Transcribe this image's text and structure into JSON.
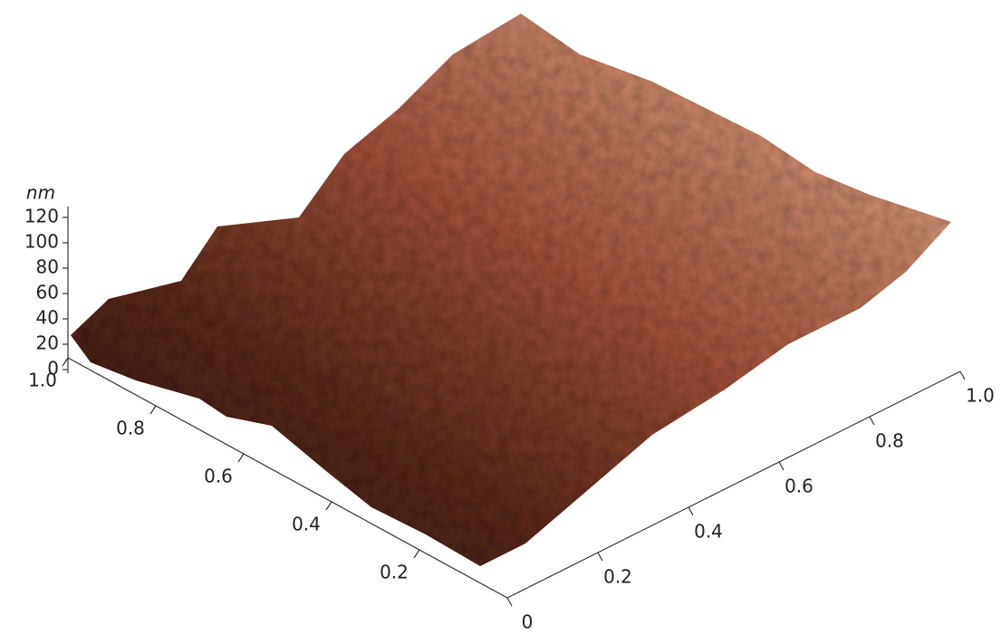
{
  "chart_data": {
    "type": "surface3d",
    "zlabel": "nm",
    "zlim": [
      0,
      120
    ],
    "zticks": [
      0,
      20,
      40,
      60,
      80,
      100,
      120
    ],
    "xlim": [
      0,
      1
    ],
    "xticks": [
      0,
      0.2,
      0.4,
      0.6,
      0.8,
      {
        "value": 1,
        "label": "1.0"
      }
    ],
    "ylim": [
      0,
      1
    ],
    "yticks": [
      0.2,
      0.4,
      0.6,
      0.8,
      {
        "value": 1,
        "label": "1.0"
      }
    ]
  }
}
